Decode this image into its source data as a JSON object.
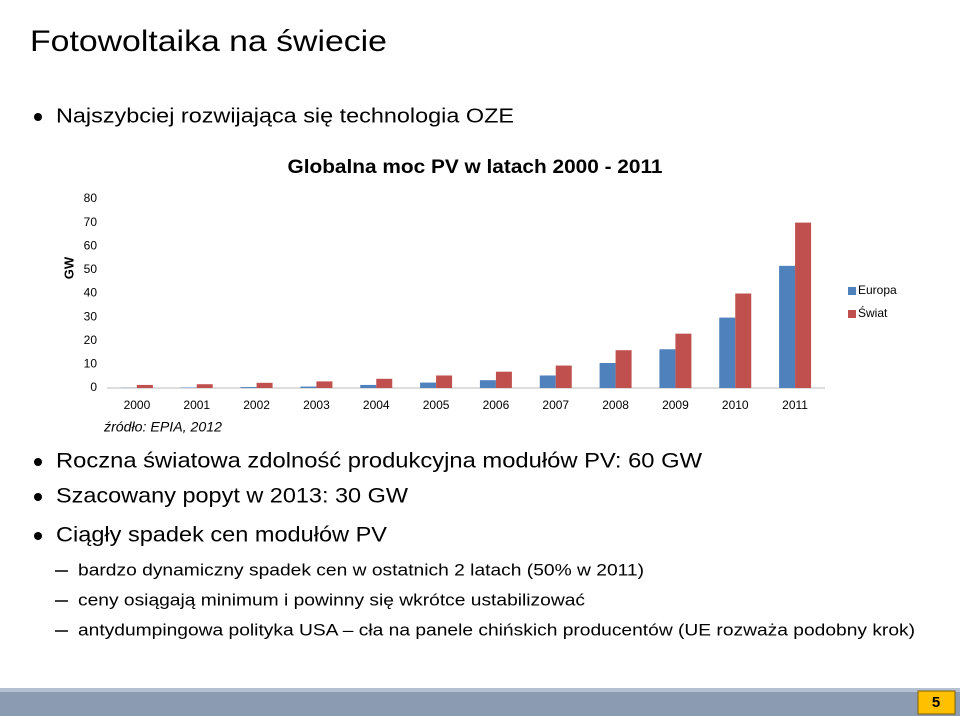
{
  "title": "Fotowoltaika na świecie",
  "bullets_top": [
    "Najszybciej rozwijająca się technologia OZE"
  ],
  "chart_data": {
    "type": "bar",
    "title": "Globalna moc PV w latach 2000 - 2011",
    "y_label": "GW",
    "categories": [
      "2000",
      "2001",
      "2002",
      "2003",
      "2004",
      "2005",
      "2006",
      "2007",
      "2008",
      "2009",
      "2010",
      "2011"
    ],
    "series": [
      {
        "name": "Europa",
        "color": "#4f81bd",
        "values": [
          0.1,
          0.2,
          0.4,
          0.6,
          1.3,
          2.3,
          3.3,
          5.3,
          10.6,
          16.4,
          29.8,
          51.7
        ]
      },
      {
        "name": "Świat",
        "color": "#c0504d",
        "values": [
          1.3,
          1.6,
          2.2,
          2.8,
          3.9,
          5.3,
          6.9,
          9.5,
          16.0,
          23.0,
          40.0,
          70.0
        ]
      }
    ],
    "ylim": [
      0,
      80
    ],
    "yticks": [
      0,
      10,
      20,
      30,
      40,
      50,
      60,
      70,
      80
    ],
    "grid": false,
    "legend": "right"
  },
  "source": "źródło: EPIA, 2012",
  "bullets": [
    "Roczna światowa zdolność produkcyjna modułów PV: 60 GW",
    "Szacowany popyt w 2013: 30 GW",
    "Ciągły spadek cen modułów PV"
  ],
  "sub_bullets": [
    "bardzo dynamiczny spadek cen w ostatnich 2 latach (50% w 2011)",
    "ceny osiągają minimum i powinny się wkrótce ustabilizować",
    "antydumpingowa polityka USA – cła na panele chińskich producentów (UE rozważa podobny krok)"
  ],
  "page_number": "5"
}
